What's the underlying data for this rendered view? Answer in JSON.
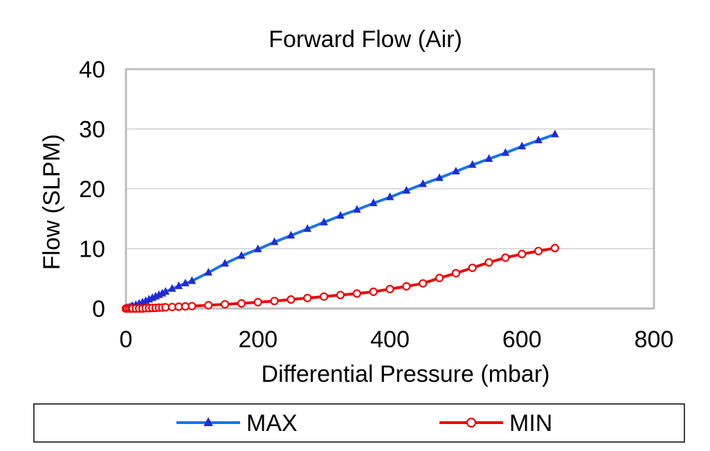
{
  "chart_data": {
    "type": "line",
    "title": "Forward Flow (Air)",
    "xlabel": "Differential Pressure (mbar)",
    "ylabel": "Flow (SLPM)",
    "xlim": [
      0,
      800
    ],
    "ylim": [
      0,
      40
    ],
    "x_ticks": [
      0,
      200,
      400,
      600,
      800
    ],
    "y_ticks": [
      0,
      10,
      20,
      30,
      40
    ],
    "grid": "horizontal",
    "legend_position": "bottom",
    "series": [
      {
        "name": "MAX",
        "color": "#1874e8",
        "marker": "triangle",
        "marker_color": "#1f2bd6",
        "points": [
          [
            0,
            0.0
          ],
          [
            2,
            0.1
          ],
          [
            5,
            0.2
          ],
          [
            8,
            0.3
          ],
          [
            10,
            0.4
          ],
          [
            15,
            0.6
          ],
          [
            20,
            0.8
          ],
          [
            25,
            1.0
          ],
          [
            30,
            1.25
          ],
          [
            35,
            1.5
          ],
          [
            40,
            1.75
          ],
          [
            45,
            2.0
          ],
          [
            50,
            2.25
          ],
          [
            55,
            2.5
          ],
          [
            60,
            2.8
          ],
          [
            70,
            3.3
          ],
          [
            80,
            3.75
          ],
          [
            90,
            4.2
          ],
          [
            100,
            4.6
          ],
          [
            125,
            6.0
          ],
          [
            150,
            7.5
          ],
          [
            175,
            8.8
          ],
          [
            200,
            9.9
          ],
          [
            225,
            11.1
          ],
          [
            250,
            12.2
          ],
          [
            275,
            13.3
          ],
          [
            300,
            14.4
          ],
          [
            325,
            15.5
          ],
          [
            350,
            16.5
          ],
          [
            375,
            17.6
          ],
          [
            400,
            18.6
          ],
          [
            425,
            19.7
          ],
          [
            450,
            20.8
          ],
          [
            475,
            21.8
          ],
          [
            500,
            22.9
          ],
          [
            525,
            24.0
          ],
          [
            550,
            25.0
          ],
          [
            575,
            26.0
          ],
          [
            600,
            27.1
          ],
          [
            625,
            28.1
          ],
          [
            650,
            29.1
          ]
        ]
      },
      {
        "name": "MIN",
        "color": "#ee0000",
        "marker": "circle",
        "marker_color": "#ee0000",
        "points": [
          [
            0,
            0.0
          ],
          [
            2,
            0.0
          ],
          [
            5,
            0.0
          ],
          [
            8,
            0.0
          ],
          [
            10,
            0.0
          ],
          [
            15,
            0.0
          ],
          [
            20,
            0.0
          ],
          [
            25,
            0.0
          ],
          [
            30,
            0.05
          ],
          [
            35,
            0.05
          ],
          [
            40,
            0.1
          ],
          [
            45,
            0.1
          ],
          [
            50,
            0.15
          ],
          [
            55,
            0.15
          ],
          [
            60,
            0.2
          ],
          [
            70,
            0.25
          ],
          [
            80,
            0.3
          ],
          [
            90,
            0.35
          ],
          [
            100,
            0.4
          ],
          [
            125,
            0.55
          ],
          [
            150,
            0.7
          ],
          [
            175,
            0.85
          ],
          [
            200,
            1.05
          ],
          [
            225,
            1.25
          ],
          [
            250,
            1.5
          ],
          [
            275,
            1.75
          ],
          [
            300,
            2.0
          ],
          [
            325,
            2.25
          ],
          [
            350,
            2.5
          ],
          [
            375,
            2.8
          ],
          [
            400,
            3.25
          ],
          [
            425,
            3.7
          ],
          [
            450,
            4.2
          ],
          [
            475,
            5.1
          ],
          [
            500,
            5.9
          ],
          [
            525,
            6.8
          ],
          [
            550,
            7.7
          ],
          [
            575,
            8.5
          ],
          [
            600,
            9.1
          ],
          [
            625,
            9.6
          ],
          [
            650,
            10.1
          ]
        ]
      }
    ]
  }
}
